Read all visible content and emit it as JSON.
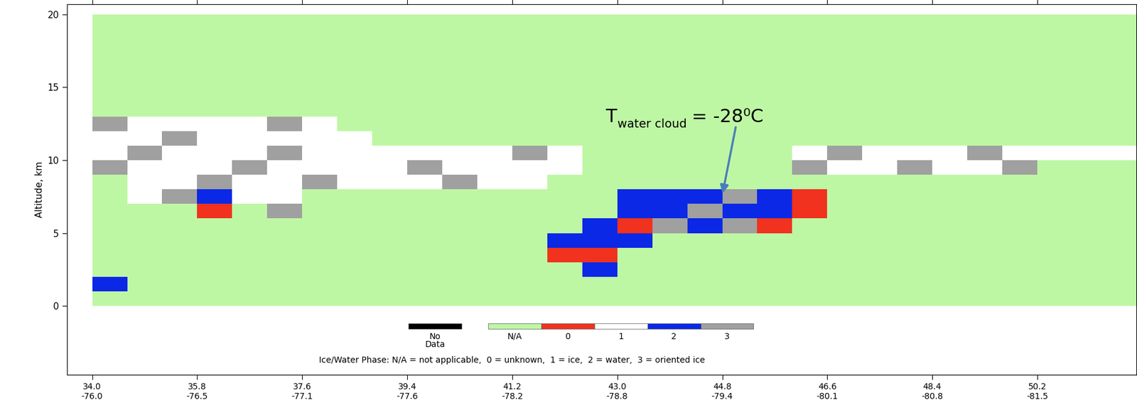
{
  "chart_data": {
    "type": "heatmap",
    "ylabel": "Altitude, km",
    "xlim": [
      33.57,
      51.9
    ],
    "ylim": [
      -4.7,
      20.7
    ],
    "xticks": [
      {
        "value": 34.0,
        "label": "34.0\n-76.0"
      },
      {
        "value": 35.8,
        "label": "35.8\n-76.5"
      },
      {
        "value": 37.6,
        "label": "37.6\n-77.1"
      },
      {
        "value": 39.4,
        "label": "39.4\n-77.6"
      },
      {
        "value": 41.2,
        "label": "41.2\n-78.2"
      },
      {
        "value": 43.0,
        "label": "43.0\n-78.8"
      },
      {
        "value": 44.8,
        "label": "44.8\n-79.4"
      },
      {
        "value": 46.6,
        "label": "46.6\n-80.1"
      },
      {
        "value": 48.4,
        "label": "48.4\n-80.8"
      },
      {
        "value": 50.2,
        "label": "50.2\n-81.5"
      }
    ],
    "yticks": [
      0,
      5,
      10,
      15,
      20
    ],
    "x_edges": [
      34.0,
      34.6,
      35.2,
      35.8,
      36.4,
      37.0,
      37.6,
      38.2,
      38.8,
      39.4,
      40.0,
      40.6,
      41.2,
      41.8,
      42.4,
      43.0,
      43.6,
      44.2,
      44.8,
      45.4,
      46.0,
      46.6,
      47.2,
      47.8,
      48.4,
      49.0,
      49.6,
      50.2,
      50.8,
      51.4,
      52.0
    ],
    "y_edges": [
      0,
      1,
      2,
      3,
      4,
      5,
      6,
      7,
      8,
      9,
      10,
      11,
      12,
      13,
      14,
      15,
      16,
      17,
      18,
      19,
      20
    ],
    "cells": [
      [
        1,
        1,
        1,
        1,
        1,
        1,
        1,
        1,
        1,
        1,
        1,
        1,
        1,
        1,
        1,
        1,
        1,
        1,
        1,
        1,
        1,
        1,
        1,
        1,
        1,
        1,
        1,
        1,
        1,
        1
      ],
      [
        4,
        1,
        1,
        1,
        1,
        1,
        1,
        1,
        1,
        1,
        1,
        1,
        1,
        1,
        1,
        1,
        1,
        1,
        1,
        1,
        1,
        1,
        1,
        1,
        1,
        1,
        1,
        1,
        1,
        1
      ],
      [
        1,
        1,
        1,
        1,
        1,
        1,
        1,
        1,
        1,
        1,
        1,
        1,
        1,
        1,
        4,
        1,
        1,
        1,
        1,
        1,
        1,
        1,
        1,
        1,
        1,
        1,
        1,
        1,
        1,
        1
      ],
      [
        1,
        1,
        1,
        1,
        1,
        1,
        1,
        1,
        1,
        1,
        1,
        1,
        1,
        2,
        2,
        1,
        1,
        1,
        1,
        1,
        1,
        1,
        1,
        1,
        1,
        1,
        1,
        1,
        1,
        1
      ],
      [
        1,
        1,
        1,
        1,
        1,
        1,
        1,
        1,
        1,
        1,
        1,
        1,
        1,
        4,
        4,
        4,
        1,
        1,
        1,
        1,
        1,
        1,
        1,
        1,
        1,
        1,
        1,
        1,
        1,
        1
      ],
      [
        1,
        1,
        1,
        1,
        1,
        1,
        1,
        1,
        1,
        1,
        1,
        1,
        1,
        1,
        4,
        2,
        5,
        4,
        5,
        2,
        1,
        1,
        1,
        1,
        1,
        1,
        1,
        1,
        1,
        1
      ],
      [
        1,
        1,
        1,
        2,
        1,
        5,
        1,
        1,
        1,
        1,
        1,
        1,
        1,
        1,
        1,
        4,
        4,
        5,
        4,
        4,
        2,
        1,
        1,
        1,
        1,
        1,
        1,
        1,
        1,
        1
      ],
      [
        1,
        3,
        5,
        4,
        3,
        3,
        1,
        1,
        1,
        1,
        1,
        1,
        1,
        1,
        1,
        4,
        4,
        4,
        5,
        4,
        2,
        1,
        1,
        1,
        1,
        1,
        1,
        1,
        1,
        1
      ],
      [
        1,
        3,
        3,
        5,
        3,
        3,
        5,
        3,
        3,
        3,
        5,
        3,
        3,
        1,
        1,
        1,
        1,
        1,
        1,
        1,
        1,
        1,
        1,
        1,
        1,
        1,
        1,
        1,
        1,
        1
      ],
      [
        5,
        3,
        3,
        3,
        5,
        3,
        3,
        3,
        3,
        5,
        3,
        3,
        3,
        3,
        1,
        1,
        1,
        1,
        1,
        1,
        5,
        3,
        3,
        5,
        3,
        3,
        5,
        1,
        1,
        1
      ],
      [
        3,
        5,
        3,
        3,
        3,
        5,
        3,
        3,
        3,
        3,
        3,
        3,
        5,
        3,
        1,
        1,
        1,
        1,
        1,
        1,
        3,
        5,
        3,
        3,
        3,
        5,
        3,
        3,
        3,
        3
      ],
      [
        3,
        3,
        5,
        3,
        3,
        3,
        3,
        3,
        1,
        1,
        1,
        1,
        1,
        1,
        1,
        1,
        1,
        1,
        1,
        1,
        1,
        1,
        1,
        1,
        1,
        1,
        1,
        1,
        1,
        1
      ],
      [
        5,
        3,
        3,
        3,
        3,
        5,
        3,
        1,
        1,
        1,
        1,
        1,
        1,
        1,
        1,
        1,
        1,
        1,
        1,
        1,
        1,
        1,
        1,
        1,
        1,
        1,
        1,
        1,
        1,
        1
      ],
      [
        1,
        1,
        1,
        1,
        1,
        1,
        1,
        1,
        1,
        1,
        1,
        1,
        1,
        1,
        1,
        1,
        1,
        1,
        1,
        1,
        1,
        1,
        1,
        1,
        1,
        1,
        1,
        1,
        1,
        1
      ],
      [
        1,
        1,
        1,
        1,
        1,
        1,
        1,
        1,
        1,
        1,
        1,
        1,
        1,
        1,
        1,
        1,
        1,
        1,
        1,
        1,
        1,
        1,
        1,
        1,
        1,
        1,
        1,
        1,
        1,
        1
      ],
      [
        1,
        1,
        1,
        1,
        1,
        1,
        1,
        1,
        1,
        1,
        1,
        1,
        1,
        1,
        1,
        1,
        1,
        1,
        1,
        1,
        1,
        1,
        1,
        1,
        1,
        1,
        1,
        1,
        1,
        1
      ],
      [
        1,
        1,
        1,
        1,
        1,
        1,
        1,
        1,
        1,
        1,
        1,
        1,
        1,
        1,
        1,
        1,
        1,
        1,
        1,
        1,
        1,
        1,
        1,
        1,
        1,
        1,
        1,
        1,
        1,
        1
      ],
      [
        1,
        1,
        1,
        1,
        1,
        1,
        1,
        1,
        1,
        1,
        1,
        1,
        1,
        1,
        1,
        1,
        1,
        1,
        1,
        1,
        1,
        1,
        1,
        1,
        1,
        1,
        1,
        1,
        1,
        1
      ],
      [
        1,
        1,
        1,
        1,
        1,
        1,
        1,
        1,
        1,
        1,
        1,
        1,
        1,
        1,
        1,
        1,
        1,
        1,
        1,
        1,
        1,
        1,
        1,
        1,
        1,
        1,
        1,
        1,
        1,
        1
      ],
      [
        1,
        1,
        1,
        1,
        1,
        1,
        1,
        1,
        1,
        1,
        1,
        1,
        1,
        1,
        1,
        1,
        1,
        1,
        1,
        1,
        1,
        1,
        1,
        1,
        1,
        1,
        1,
        1,
        1,
        1
      ]
    ],
    "phase_labels": [
      "No\nData",
      "N/A",
      "0",
      "1",
      "2",
      "3"
    ],
    "colors": [
      "#000000",
      "#bef7a4",
      "#f0321e",
      "#ffffff",
      "#0a28e6",
      "#a0a0a0"
    ],
    "phase_caption": "Ice/Water Phase: N/A = not applicable,  0 = unknown,  1 = ice,  2 = water,  3 = oriented ice",
    "annotation": {
      "text": [
        "T",
        "water cloud",
        "= -28⁰C"
      ],
      "xy": [
        44.8,
        7.6
      ]
    }
  }
}
